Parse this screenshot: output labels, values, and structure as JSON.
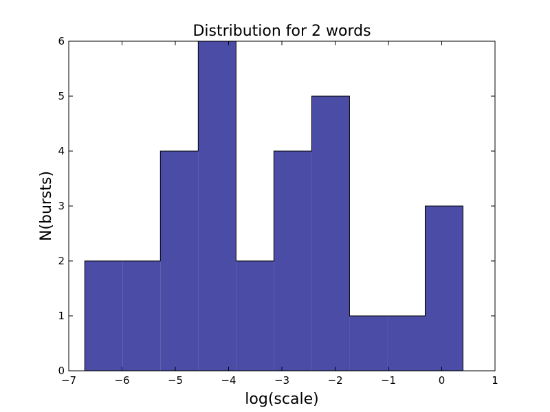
{
  "chart_data": {
    "type": "histogram",
    "title": "Distribution for 2 words",
    "xlabel": "log(scale)",
    "ylabel": "N(bursts)",
    "xlim": [
      -7,
      1
    ],
    "ylim": [
      0,
      6
    ],
    "xticks": [
      -7,
      -6,
      -5,
      -4,
      -3,
      -2,
      -1,
      0,
      1
    ],
    "yticks": [
      0,
      1,
      2,
      3,
      4,
      5,
      6
    ],
    "bin_edges": [
      -6.7,
      -5.99,
      -5.28,
      -4.57,
      -3.86,
      -3.15,
      -2.44,
      -1.73,
      -1.02,
      -0.31,
      0.4
    ],
    "counts": [
      2,
      2,
      4,
      6,
      2,
      4,
      5,
      1,
      1,
      3
    ],
    "bar_color": "#4b4ca6",
    "edge_color": "#000000",
    "grid": false
  }
}
